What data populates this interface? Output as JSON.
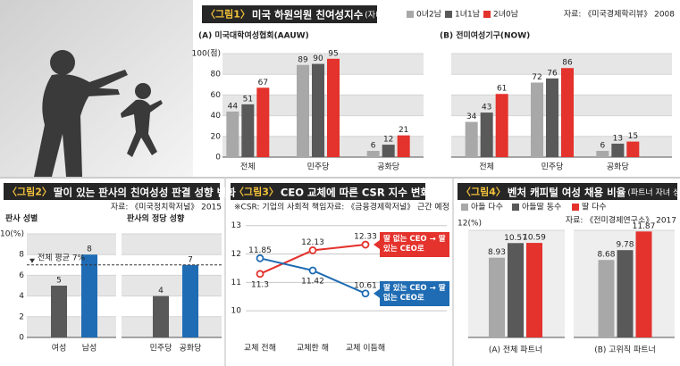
{
  "chart_data": [
    {
      "type": "grouped-bar",
      "figure_label": "〈그림1〉",
      "title": "미국 하원의원 친여성지수",
      "subtitle": "(자녀 성별)",
      "source": "자료: 《미국경제학리뷰》 2008",
      "series": [
        {
          "name": "0녀2남",
          "color": "#a8a8a8"
        },
        {
          "name": "1녀1남",
          "color": "#595959"
        },
        {
          "name": "2녀0남",
          "color": "#e4322c"
        }
      ],
      "ylim": [
        0,
        100
      ],
      "yticks": [
        0,
        20,
        40,
        60,
        80,
        {
          "value": 100,
          "label": "100(점)"
        }
      ],
      "grid": "bands",
      "panels": [
        {
          "title": "(A) 미국대학여성협회(AAUW)",
          "categories": [
            "전체",
            "민주당",
            "공화당"
          ],
          "values": [
            [
              44,
              89,
              6
            ],
            [
              51,
              90,
              12
            ],
            [
              67,
              95,
              21
            ]
          ],
          "ytick_labels": true
        },
        {
          "title": "(B) 전미여성기구(NOW)",
          "categories": [
            "전체",
            "민주당",
            "공화당"
          ],
          "values": [
            [
              34,
              72,
              6
            ],
            [
              43,
              76,
              13
            ],
            [
              61,
              86,
              15
            ]
          ],
          "ytick_labels": false
        }
      ]
    },
    {
      "type": "grouped-bar",
      "figure_label": "〈그림2〉",
      "title": "딸이 있는 판사의 친여성성 판결 성향 변화",
      "source": "자료: 《미국정치학저널》 2015",
      "ylim": [
        0,
        10
      ],
      "yticks": [
        0,
        2,
        4,
        6,
        8,
        {
          "value": 10,
          "label": "10(%)"
        }
      ],
      "grid": "bands",
      "reference": {
        "label": "전체 평균 7%",
        "value": 7
      },
      "panels": [
        {
          "title": "판사 성별",
          "categories": [
            "여성",
            "남성"
          ],
          "values": [
            5,
            8
          ],
          "colors": [
            "#595959",
            "#1f6cb4"
          ],
          "ytick_labels": true
        },
        {
          "title": "판사의 정당 성향",
          "categories": [
            "민주당",
            "공화당"
          ],
          "values": [
            4,
            7
          ],
          "colors": [
            "#595959",
            "#1f6cb4"
          ],
          "ytick_labels": false
        }
      ]
    },
    {
      "type": "line",
      "figure_label": "〈그림3〉",
      "title": "CEO 교체에 따른 CSR 지수 변화",
      "note": "※CSR: 기업의 사회적 책임",
      "source": "자료: 《금융경제학저널》 근간 예정",
      "categories": [
        "교체 전해",
        "교체한 해",
        "교체 이듬해"
      ],
      "ylim": [
        9,
        13.4
      ],
      "yticks": [
        10,
        11,
        12,
        13
      ],
      "grid": true,
      "series": [
        {
          "name": "딸 없는 CEO → 딸 있는 CEO로",
          "color": "#e4322c",
          "values": [
            11.3,
            12.13,
            12.33
          ]
        },
        {
          "name": "딸 있는 CEO → 딸 없는 CEO로",
          "color": "#1f6cb4",
          "values": [
            11.85,
            11.42,
            10.61
          ]
        }
      ]
    },
    {
      "type": "grouped-bar",
      "figure_label": "〈그림4〉",
      "title": "벤처 캐피털 여성 채용 비율",
      "subtitle": "(파트너 자녀 성별)",
      "source": "자료: 《전미경제연구소》 2017",
      "series": [
        {
          "name": "아들 다수",
          "color": "#a8a8a8"
        },
        {
          "name": "아들딸 동수",
          "color": "#595959"
        },
        {
          "name": "딸 다수",
          "color": "#e4322c"
        }
      ],
      "ylim": [
        0,
        12
      ],
      "yticks": [
        {
          "value": 12,
          "label": "12(%)"
        }
      ],
      "grid": "bands",
      "panels": [
        {
          "categories": [
            "(A) 전체 파트너"
          ],
          "values": [
            [
              8.93
            ],
            [
              10.57
            ],
            [
              10.59
            ]
          ],
          "ytick_labels": true
        },
        {
          "categories": [
            "(B) 고위직 파트너"
          ],
          "values": [
            [
              8.68
            ],
            [
              9.78
            ],
            [
              11.87
            ]
          ],
          "ytick_labels": false
        }
      ]
    }
  ]
}
